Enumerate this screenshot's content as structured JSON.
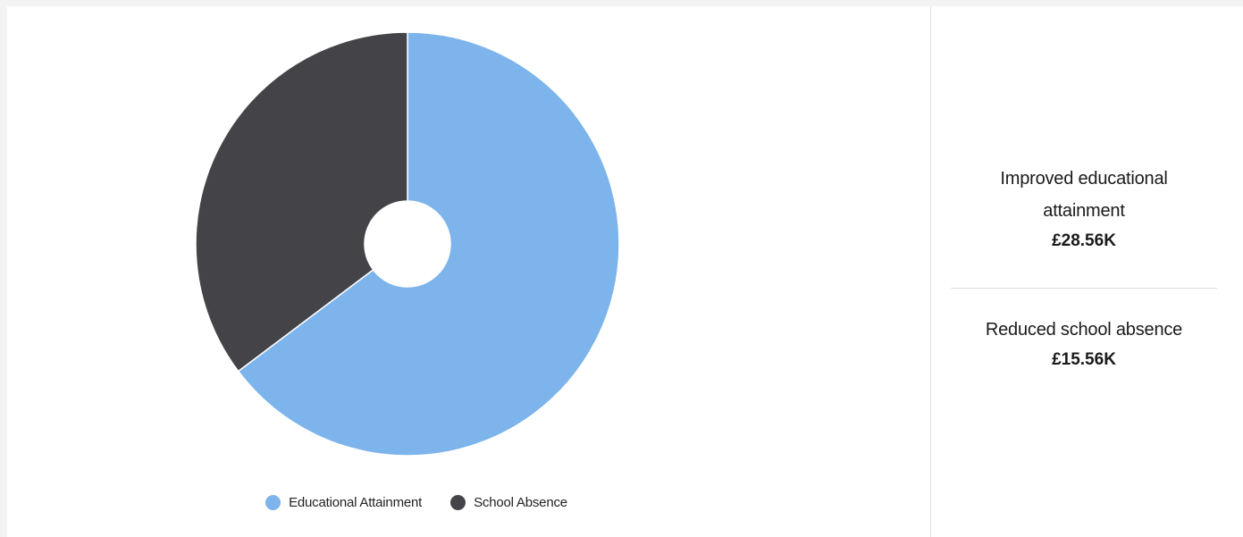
{
  "chart_data": {
    "type": "pie",
    "donut": true,
    "slices": [
      {
        "name": "Educational Attainment",
        "value": 28.56,
        "color": "#7cb4eb"
      },
      {
        "name": "School Absence",
        "value": 15.56,
        "color": "#434348"
      }
    ],
    "legend_position": "bottom"
  },
  "summary": {
    "items": [
      {
        "label": "Improved educational attainment",
        "value": "£28.56K"
      },
      {
        "label": "Reduced school absence",
        "value": "£15.56K"
      }
    ]
  }
}
